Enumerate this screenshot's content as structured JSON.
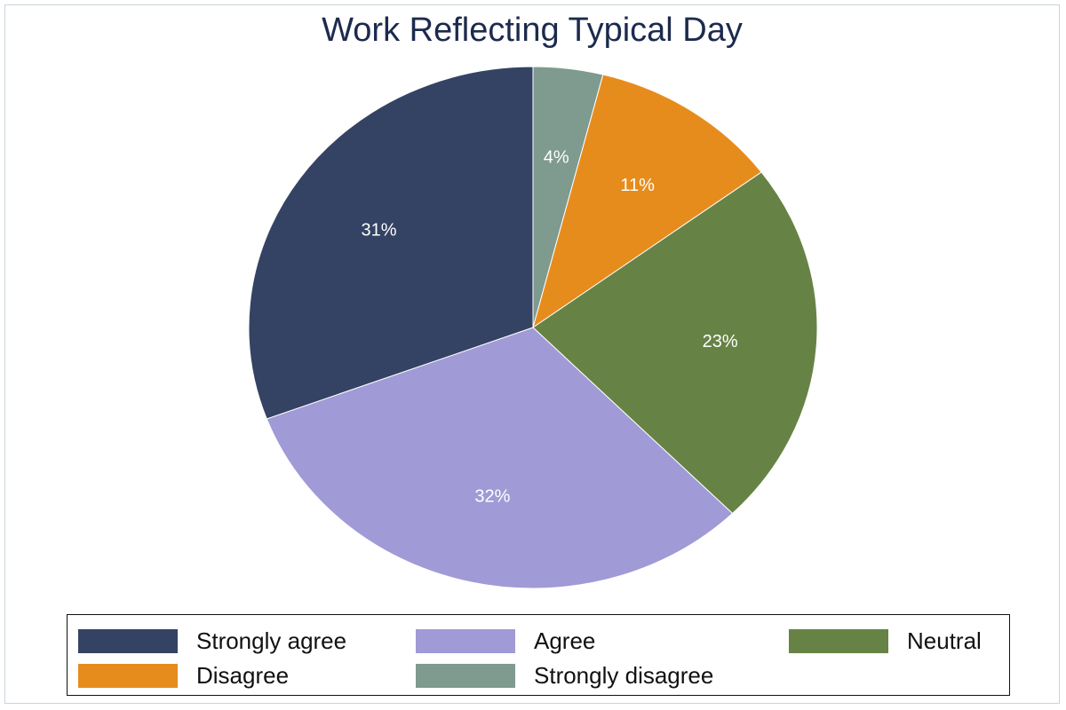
{
  "chart_data": {
    "type": "pie",
    "title": "Work Reflecting Typical Day",
    "start_angle_deg": 0,
    "direction": "clockwise",
    "slices": [
      {
        "label": "Strongly disagree",
        "value": 4,
        "display": "4%",
        "color": "#7f9a8f"
      },
      {
        "label": "Disagree",
        "value": 11,
        "display": "11%",
        "color": "#e68c1d"
      },
      {
        "label": "Neutral",
        "value": 23,
        "display": "23%",
        "color": "#668345"
      },
      {
        "label": "Agree",
        "value": 32,
        "display": "32%",
        "color": "#a09ad6"
      },
      {
        "label": "Strongly agree",
        "value": 31,
        "display": "31%",
        "color": "#344363"
      }
    ],
    "legend": {
      "position": "bottom",
      "entries": [
        {
          "label": "Strongly agree",
          "color": "#344363"
        },
        {
          "label": "Agree",
          "color": "#a09ad6"
        },
        {
          "label": "Neutral",
          "color": "#668345"
        },
        {
          "label": "Disagree",
          "color": "#e68c1d"
        },
        {
          "label": "Strongly disagree",
          "color": "#7f9a8f"
        }
      ]
    },
    "colors": {
      "title": "#1c2a4d",
      "slice_label": "#ffffff"
    }
  }
}
